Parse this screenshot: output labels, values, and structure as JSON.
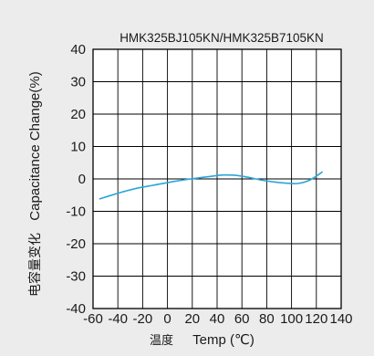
{
  "chart_data": {
    "type": "line",
    "title": "HMK325BJ105KN/HMK325B7105KN",
    "xlabel_cn": "温度",
    "xlabel_en": "Temp (℃)",
    "ylabel_cn": "电容量变化",
    "ylabel_en": "Capacitance Change(%)",
    "xlim": [
      -60,
      140
    ],
    "ylim": [
      -40,
      40
    ],
    "x_ticks": [
      -60,
      -40,
      -20,
      0,
      20,
      40,
      60,
      80,
      100,
      120,
      140
    ],
    "y_ticks": [
      40,
      30,
      20,
      10,
      0,
      -10,
      -20,
      -30,
      -40
    ],
    "x_tick_labels": [
      "-60",
      "-40",
      "-20",
      "0",
      "20",
      "40",
      "60",
      "80",
      "100",
      "120",
      "140"
    ],
    "y_tick_labels": [
      "40",
      "30",
      "20",
      "10",
      "0",
      "-10",
      "-20",
      "-30",
      "-40"
    ],
    "grid": true,
    "series": [
      {
        "color": "#2aa6d8",
        "x": [
          -55,
          -45,
          -35,
          -25,
          -15,
          -5,
          5,
          15,
          25,
          35,
          45,
          55,
          65,
          75,
          85,
          95,
          105,
          115,
          125
        ],
        "y": [
          -6.2,
          -5.0,
          -3.9,
          -2.9,
          -2.2,
          -1.5,
          -0.8,
          -0.2,
          0.3,
          0.8,
          1.2,
          1.1,
          0.5,
          -0.3,
          -0.9,
          -1.3,
          -1.4,
          -0.3,
          2.2
        ]
      }
    ]
  }
}
